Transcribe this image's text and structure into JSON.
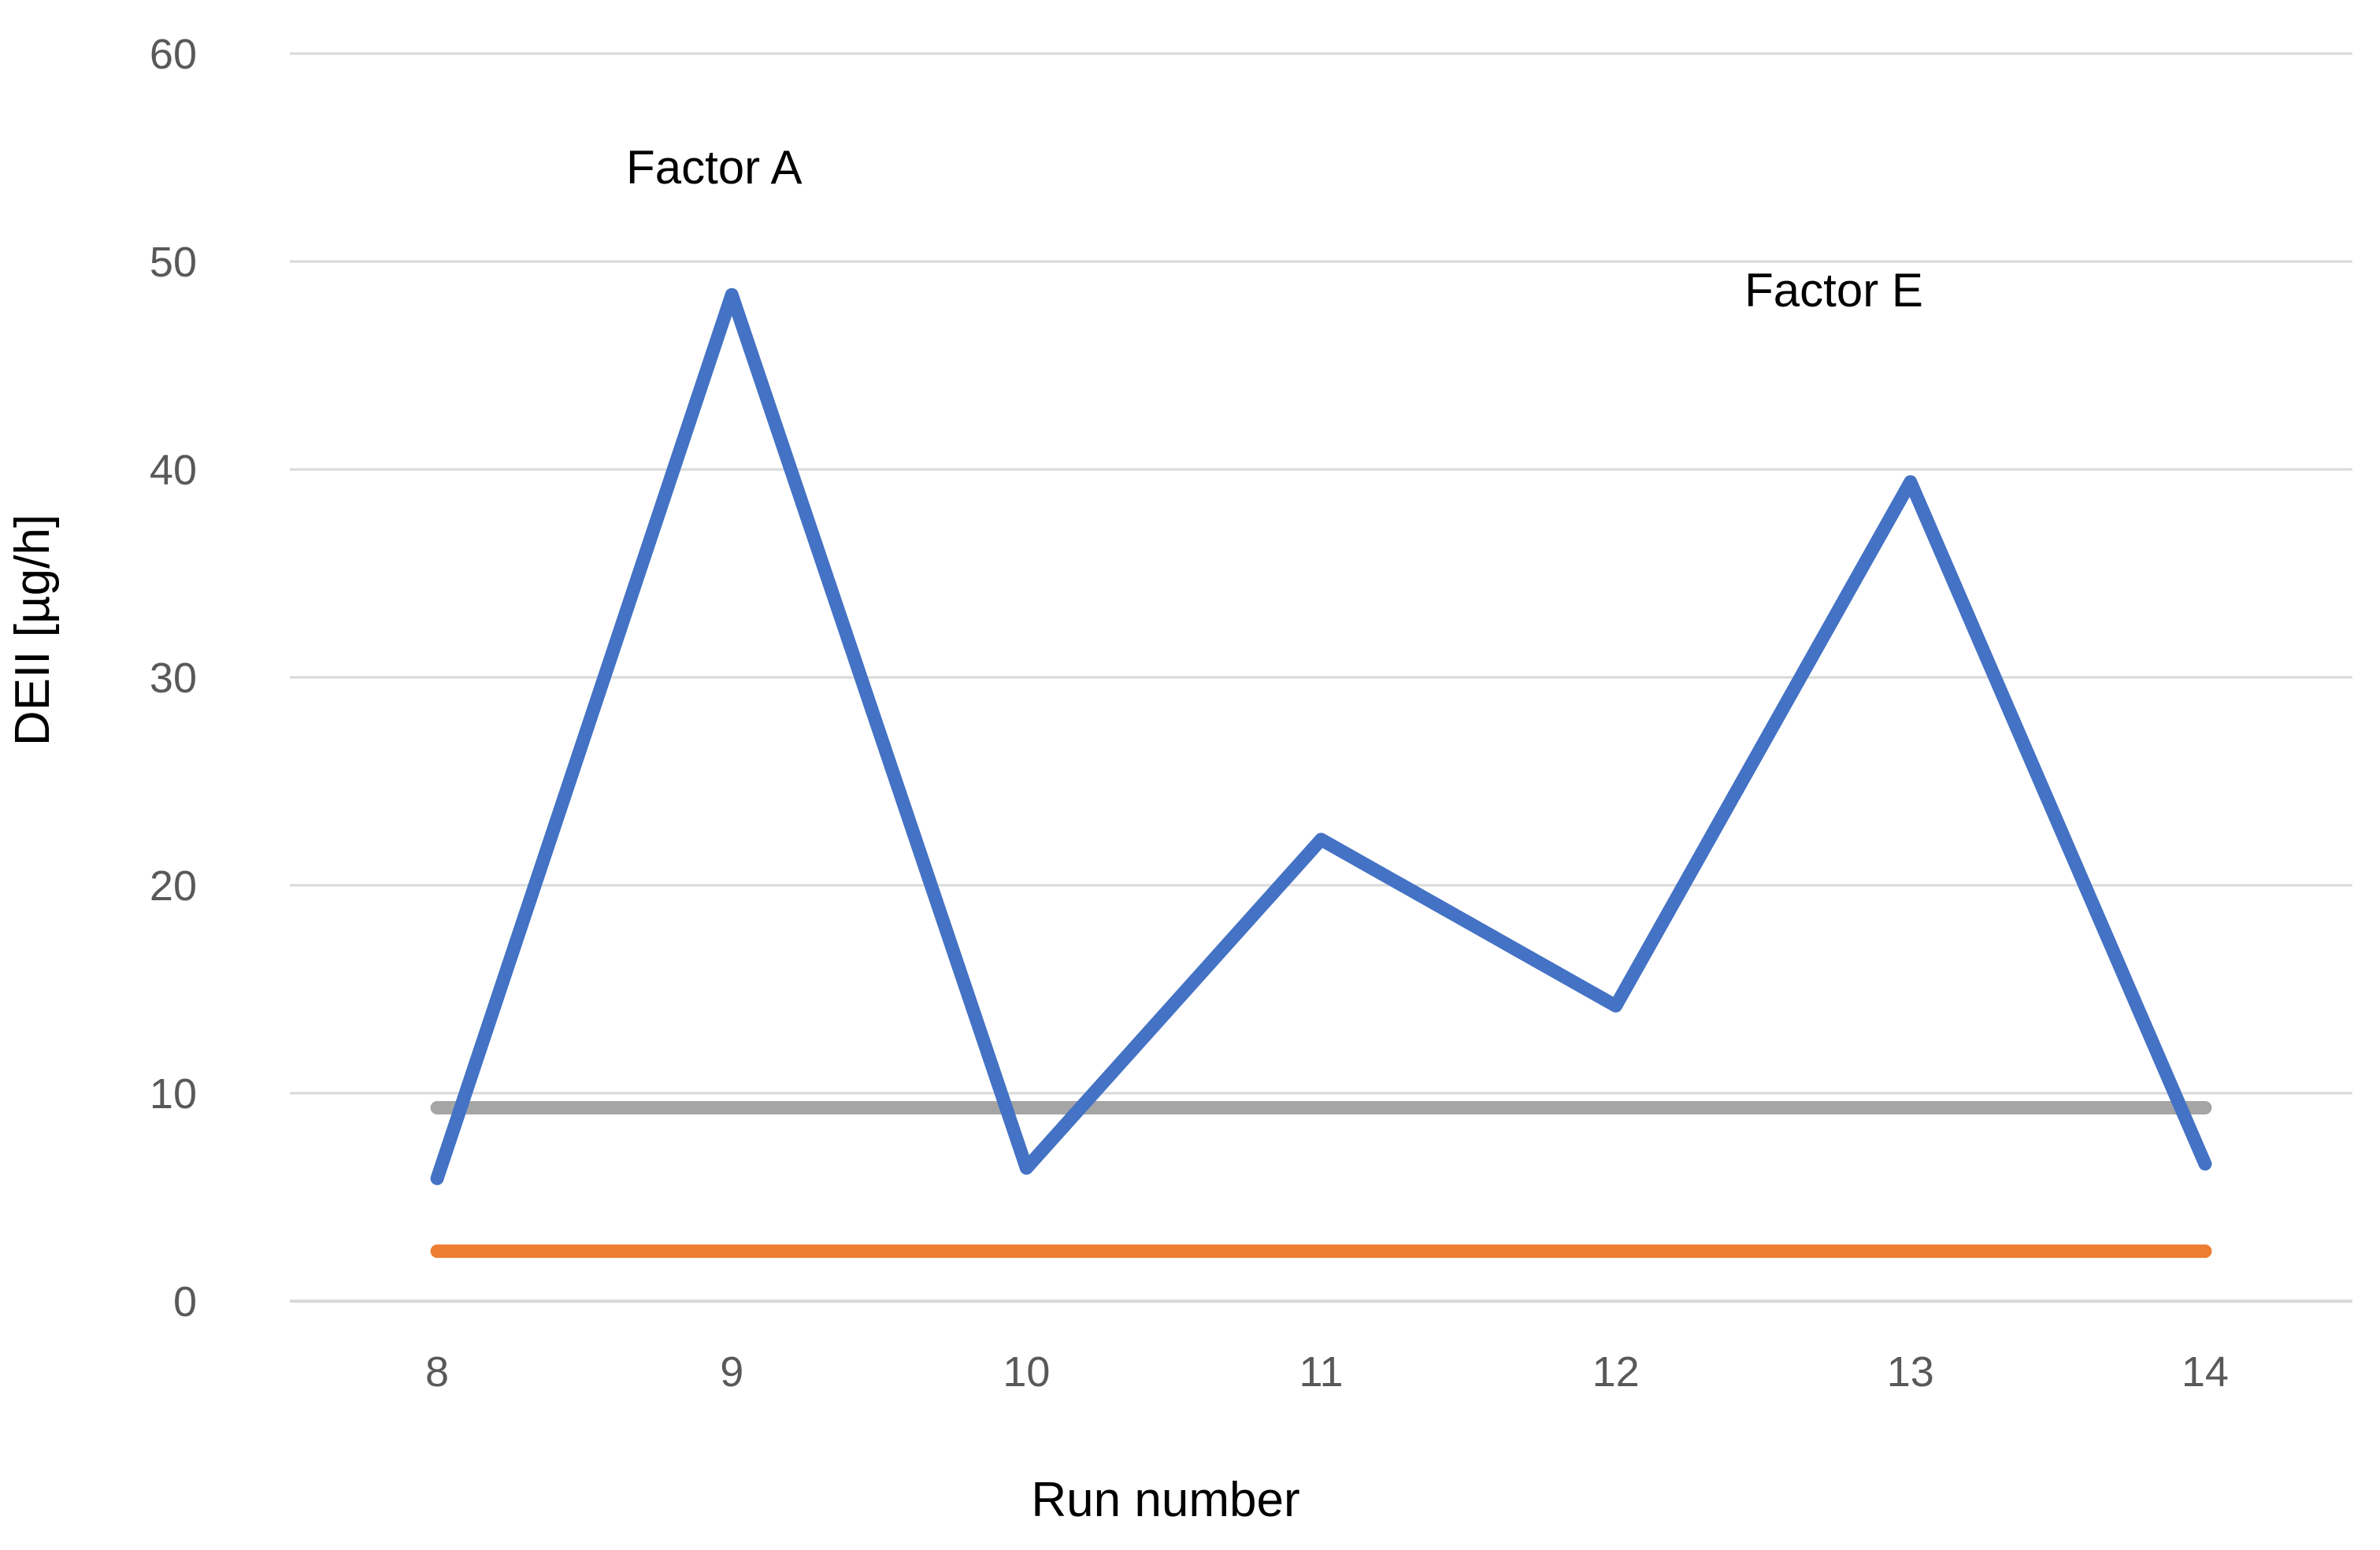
{
  "page": {
    "background": "#ffffff"
  },
  "chart_data": {
    "type": "line",
    "title": "",
    "xlabel": "Run number",
    "ylabel": "DEII [µg/h]",
    "x": [
      8,
      9,
      10,
      11,
      12,
      13,
      14
    ],
    "ylim": [
      0,
      60
    ],
    "yticks": [
      0,
      10,
      20,
      30,
      40,
      50,
      60
    ],
    "grid": true,
    "legend": "none",
    "series": [
      {
        "name": "blue-data-line",
        "color": "#4472C4",
        "values": [
          5.9,
          48.4,
          6.4,
          22.2,
          14.2,
          39.4,
          6.6
        ]
      },
      {
        "name": "gray-reference-line",
        "color": "#A5A5A5",
        "values": [
          9.3,
          9.3,
          9.3,
          9.3,
          9.3,
          9.3,
          9.3
        ]
      },
      {
        "name": "orange-reference-line",
        "color": "#ED7D31",
        "values": [
          2.4,
          2.4,
          2.4,
          2.4,
          2.4,
          2.4,
          2.4
        ]
      }
    ],
    "annotations": [
      {
        "text": "Factor A",
        "x": 8.94,
        "y": 54.5
      },
      {
        "text": "Factor E",
        "x": 12.74,
        "y": 48.6
      }
    ],
    "colors": {
      "gridline": "#D9D9D9",
      "axis_line": "#D9D9D9",
      "tick_label": "#595959",
      "axis_title": "#000000",
      "annotation": "#000000"
    }
  }
}
